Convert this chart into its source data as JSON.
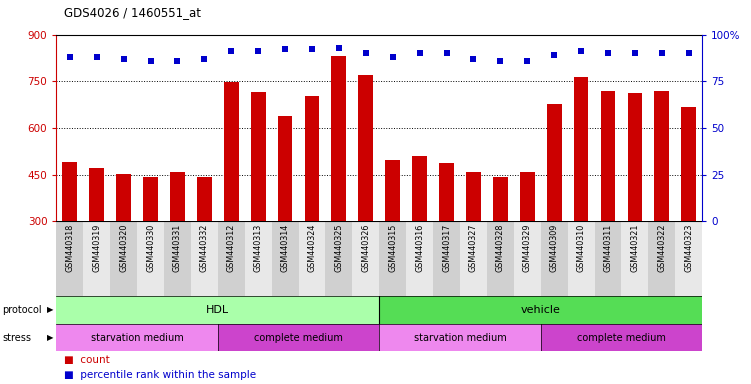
{
  "title": "GDS4026 / 1460551_at",
  "samples": [
    "GSM440318",
    "GSM440319",
    "GSM440320",
    "GSM440330",
    "GSM440331",
    "GSM440332",
    "GSM440312",
    "GSM440313",
    "GSM440314",
    "GSM440324",
    "GSM440325",
    "GSM440326",
    "GSM440315",
    "GSM440316",
    "GSM440317",
    "GSM440327",
    "GSM440328",
    "GSM440329",
    "GSM440309",
    "GSM440310",
    "GSM440311",
    "GSM440321",
    "GSM440322",
    "GSM440323"
  ],
  "counts": [
    490,
    470,
    452,
    443,
    457,
    443,
    748,
    715,
    638,
    703,
    830,
    770,
    497,
    508,
    488,
    457,
    443,
    457,
    677,
    765,
    718,
    712,
    717,
    667
  ],
  "percentile": [
    88,
    88,
    87,
    86,
    86,
    87,
    91,
    91,
    92,
    92,
    93,
    90,
    88,
    90,
    90,
    87,
    86,
    86,
    89,
    91,
    90,
    90,
    90,
    90
  ],
  "bar_color": "#cc0000",
  "dot_color": "#0000cc",
  "ylim_left": [
    300,
    900
  ],
  "ylim_right": [
    0,
    100
  ],
  "yticks_left": [
    300,
    450,
    600,
    750,
    900
  ],
  "yticks_right": [
    0,
    25,
    50,
    75,
    100
  ],
  "ytick_right_labels": [
    "0",
    "25",
    "50",
    "75",
    "100%"
  ],
  "protocol_hdl_color": "#aaffaa",
  "protocol_vehicle_color": "#55dd55",
  "stress_starvation_color": "#ee88ee",
  "stress_complete_color": "#cc44cc",
  "background_color": "#ffffff",
  "left_axis_color": "#cc0000",
  "right_axis_color": "#0000cc",
  "grid_color": "#000000"
}
